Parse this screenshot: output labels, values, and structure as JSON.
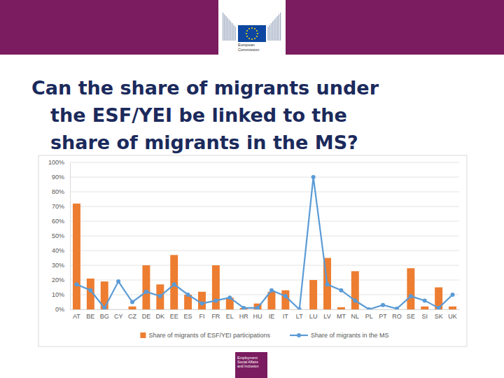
{
  "chart_data": {
    "type": "bar",
    "title": [
      "Can the share of migrants under",
      "the ESF/YEI be linked to the",
      "share of migrants in the MS?"
    ],
    "categories": [
      "AT",
      "BE",
      "BG",
      "CY",
      "CZ",
      "DE",
      "DK",
      "EE",
      "ES",
      "FI",
      "FR",
      "EL",
      "HR",
      "HU",
      "IE",
      "IT",
      "LT",
      "LU",
      "LV",
      "MT",
      "NL",
      "PL",
      "PT",
      "RO",
      "SE",
      "SI",
      "SK",
      "UK"
    ],
    "series": [
      {
        "name": "Share of migrants of ESF/YEI participations",
        "type": "bar",
        "color": "#ed7d31",
        "values": [
          72,
          21,
          19,
          0,
          2,
          30,
          17,
          37,
          10,
          12,
          30,
          8,
          1,
          4,
          12,
          13,
          0,
          20,
          35,
          1.5,
          26,
          0,
          0,
          0,
          28,
          2,
          15,
          2
        ]
      },
      {
        "name": "Share of migrants in the MS",
        "type": "line",
        "color": "#5b9bd5",
        "marker": "circle",
        "values": [
          17,
          13,
          1,
          19,
          5,
          12,
          9,
          17,
          10,
          4,
          6,
          8,
          1,
          1,
          13,
          9,
          0,
          90,
          17,
          13,
          6,
          0,
          3,
          0.5,
          9,
          6,
          1,
          10
        ]
      }
    ],
    "ylim": [
      0,
      100
    ],
    "yticks": [
      {
        "value": 0,
        "label": "0%"
      },
      {
        "value": 10,
        "label": "10%"
      },
      {
        "value": 20,
        "label": "20%"
      },
      {
        "value": 30,
        "label": "30%"
      },
      {
        "value": 40,
        "label": "40%"
      },
      {
        "value": 50,
        "label": "50%"
      },
      {
        "value": 60,
        "label": "60%"
      },
      {
        "value": 70,
        "label": "70%"
      },
      {
        "value": 80,
        "label": "80%"
      },
      {
        "value": 90,
        "label": "90%"
      },
      {
        "value": 100,
        "label": "100%"
      }
    ],
    "grid": true,
    "legend": "bottom"
  },
  "slide": {
    "header_logo_text": [
      "European",
      "Commission"
    ],
    "footer_logo_text": [
      "Employment",
      "Social Affairs",
      "and Inclusion"
    ]
  }
}
